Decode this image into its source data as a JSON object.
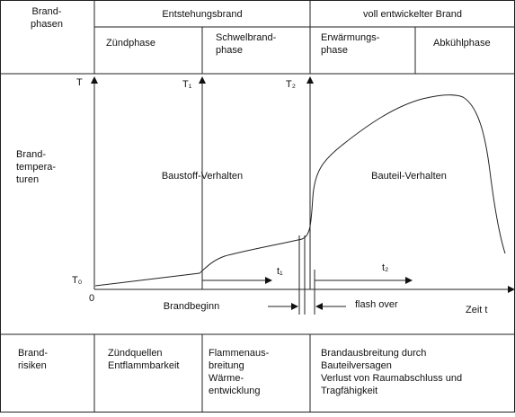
{
  "header": {
    "left": [
      "Brand-",
      "phasen"
    ],
    "groups": [
      "Entstehungsbrand",
      "voll entwickelter Brand"
    ],
    "phases": [
      [
        "Zündphase"
      ],
      [
        "Schwelbrand-",
        "phase"
      ],
      [
        "Erwärmungs-",
        "phase"
      ],
      [
        "Abkühlphase"
      ]
    ]
  },
  "diagram": {
    "row_label": [
      "Brand-",
      "tempera-",
      "turen"
    ],
    "y_axis": "T",
    "t1_marker": "T₁",
    "t2_marker": "T₂",
    "origin_temp": "T₀",
    "origin": "0",
    "left_region": "Baustoff-Verhalten",
    "right_region": "Bauteil-Verhalten",
    "t1": "t₁",
    "t2": "t₂",
    "start": "Brandbeginn",
    "flashover": "flash over",
    "x_axis": "Zeit t"
  },
  "risks": {
    "label": [
      "Brand-",
      "risiken"
    ],
    "cells": [
      [
        "Zündquellen",
        "Entflammbarkeit"
      ],
      [
        "Flammenaus-",
        "breitung",
        "Wärme-",
        "entwicklung"
      ],
      [
        "Brandausbreitung durch",
        "Bauteilversagen",
        "Verlust von Raumabschluss und",
        "Tragfähigkeit"
      ]
    ]
  }
}
